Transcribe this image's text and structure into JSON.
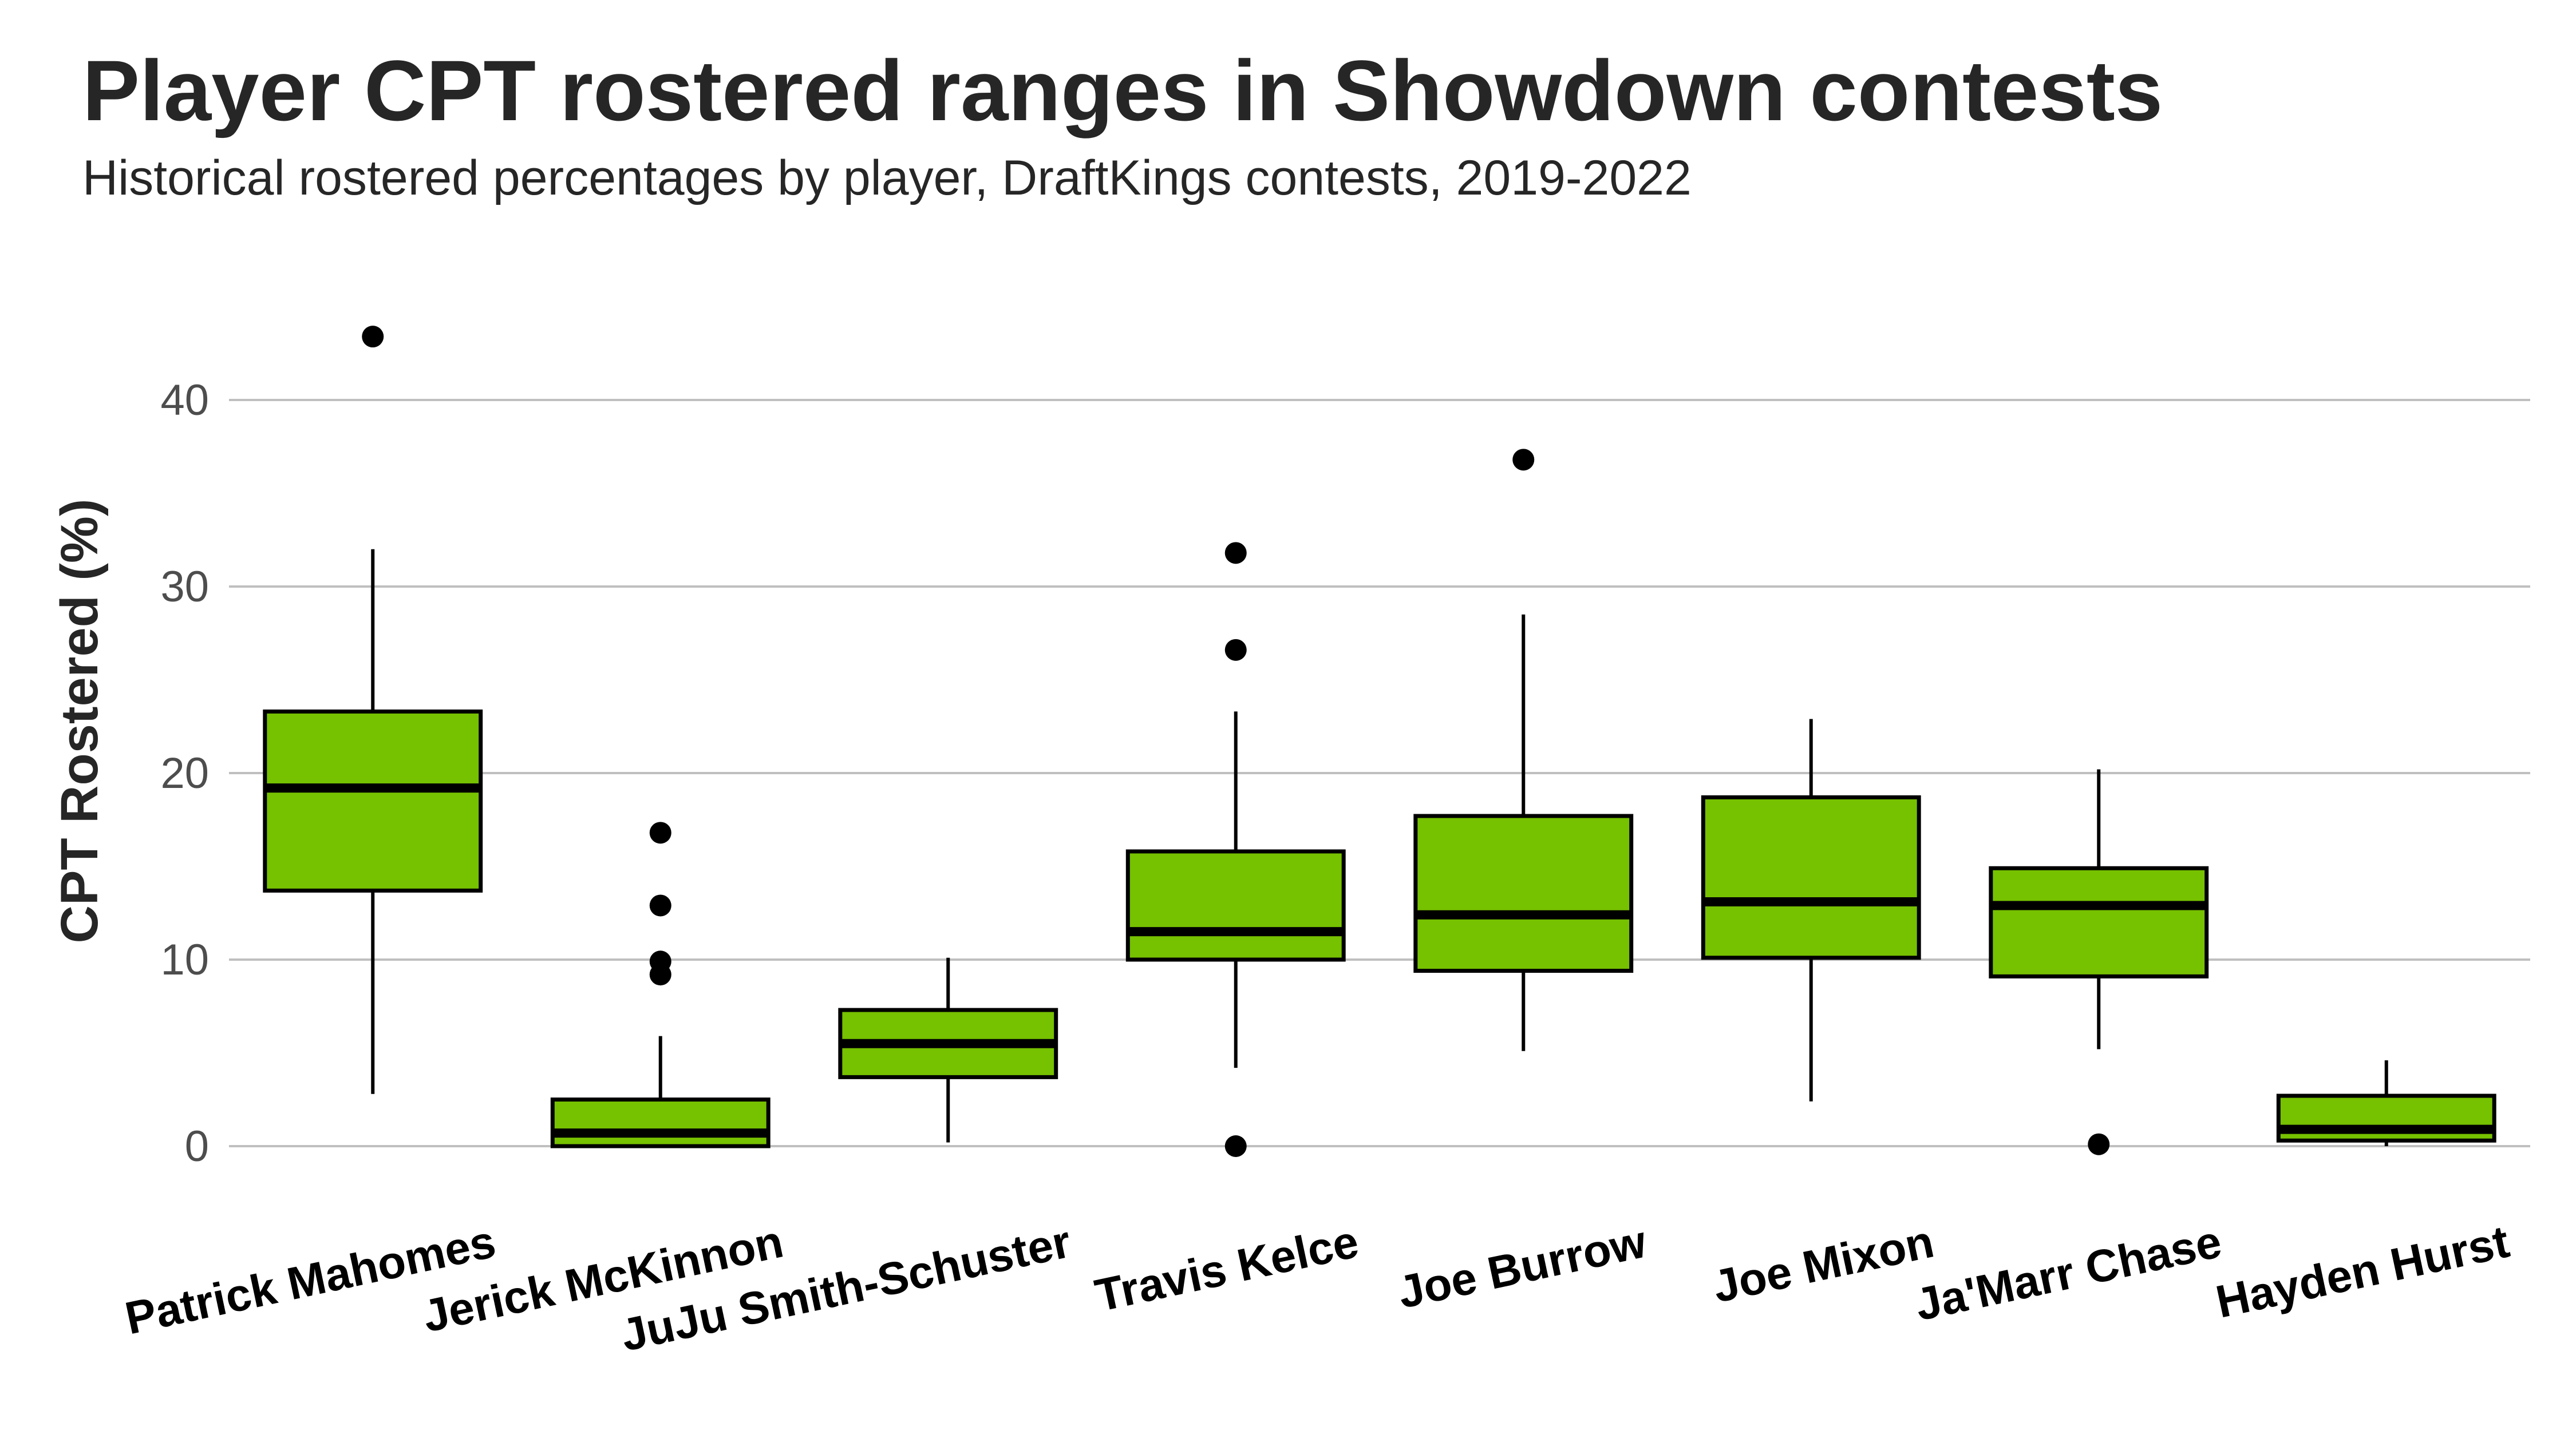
{
  "chart_data": {
    "type": "box",
    "title": "Player CPT rostered ranges in Showdown contests",
    "subtitle": "Historical rostered percentages by player, DraftKings contests, 2019-2022",
    "ylabel": "CPT Rostered (%)",
    "xlabel": "",
    "ylim": [
      -3,
      46
    ],
    "yticks": [
      0,
      10,
      20,
      30,
      40
    ],
    "grid": true,
    "colors": {
      "box_fill": "#76c100",
      "line": "#000000",
      "grid": "#bfbfbf"
    },
    "categories": [
      "Patrick Mahomes",
      "Jerick McKinnon",
      "JuJu Smith-Schuster",
      "Travis Kelce",
      "Joe Burrow",
      "Joe Mixon",
      "Ja'Marr Chase",
      "Hayden Hurst"
    ],
    "boxes": [
      {
        "name": "Patrick Mahomes",
        "min": 2.8,
        "q1": 13.7,
        "median": 19.2,
        "q3": 23.3,
        "max": 32.0,
        "outliers": [
          43.4
        ]
      },
      {
        "name": "Jerick McKinnon",
        "min": 0.0,
        "q1": 0.0,
        "median": 0.7,
        "q3": 2.5,
        "max": 5.9,
        "outliers": [
          9.2,
          9.9,
          12.9,
          16.8
        ]
      },
      {
        "name": "JuJu Smith-Schuster",
        "min": 0.2,
        "q1": 3.7,
        "median": 5.5,
        "q3": 7.3,
        "max": 10.1,
        "outliers": []
      },
      {
        "name": "Travis Kelce",
        "min": 4.2,
        "q1": 10.0,
        "median": 11.5,
        "q3": 15.8,
        "max": 23.3,
        "outliers": [
          0.0,
          26.6,
          31.8
        ]
      },
      {
        "name": "Joe Burrow",
        "min": 5.1,
        "q1": 9.4,
        "median": 12.4,
        "q3": 17.7,
        "max": 28.5,
        "outliers": [
          36.8
        ]
      },
      {
        "name": "Joe Mixon",
        "min": 2.4,
        "q1": 10.1,
        "median": 13.1,
        "q3": 18.7,
        "max": 22.9,
        "outliers": []
      },
      {
        "name": "Ja'Marr Chase",
        "min": 5.2,
        "q1": 9.1,
        "median": 12.9,
        "q3": 14.9,
        "max": 20.2,
        "outliers": [
          0.1
        ]
      },
      {
        "name": "Hayden Hurst",
        "min": 0.0,
        "q1": 0.3,
        "median": 0.9,
        "q3": 2.7,
        "max": 4.6,
        "outliers": []
      }
    ]
  }
}
